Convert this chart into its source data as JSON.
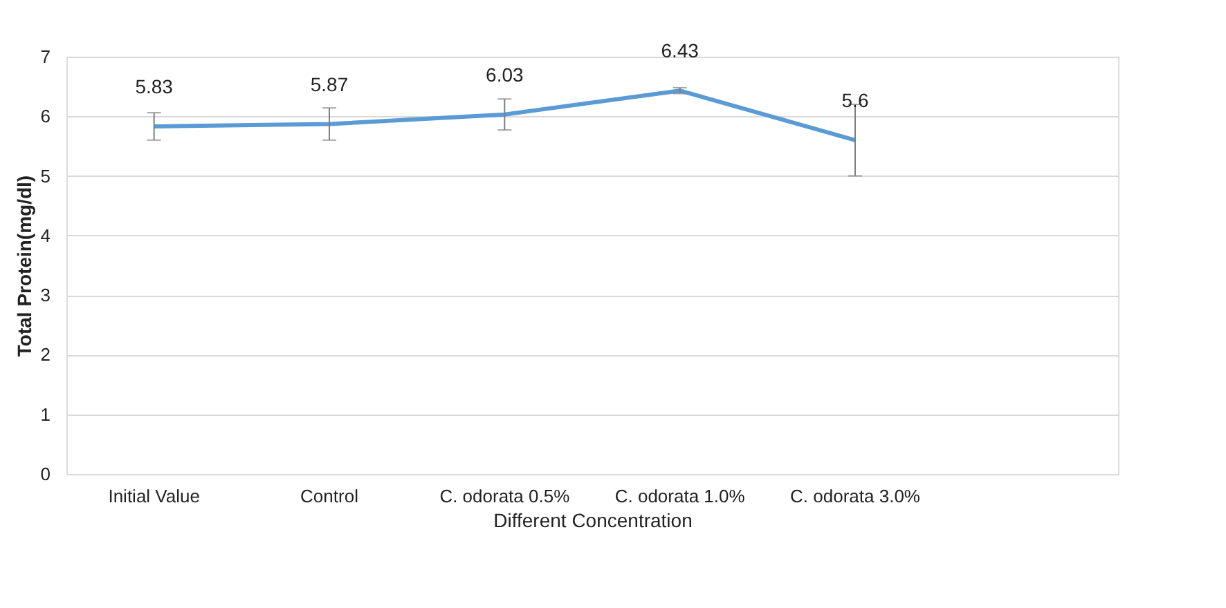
{
  "chart_data": {
    "type": "line",
    "xlabel": "Different  Concentration",
    "ylabel": "Total Protein(mg/dl)",
    "categories": [
      "Initial Value",
      "Control",
      "C. odorata 0.5%",
      "C. odorata 1.0%",
      "C. odorata 3.0%",
      null
    ],
    "series": [
      {
        "color": "#5b9bd5",
        "values": [
          5.83,
          5.87,
          6.03,
          6.43,
          5.6,
          null
        ],
        "errors": [
          0.23,
          0.27,
          0.26,
          0.05,
          0.6,
          null
        ]
      }
    ],
    "ylim": [
      0,
      7
    ],
    "yticks": [
      0,
      1,
      2,
      3,
      4,
      5,
      6,
      7
    ],
    "grid": "y",
    "data_labels": true,
    "marker": "none",
    "line_style": "solid"
  }
}
